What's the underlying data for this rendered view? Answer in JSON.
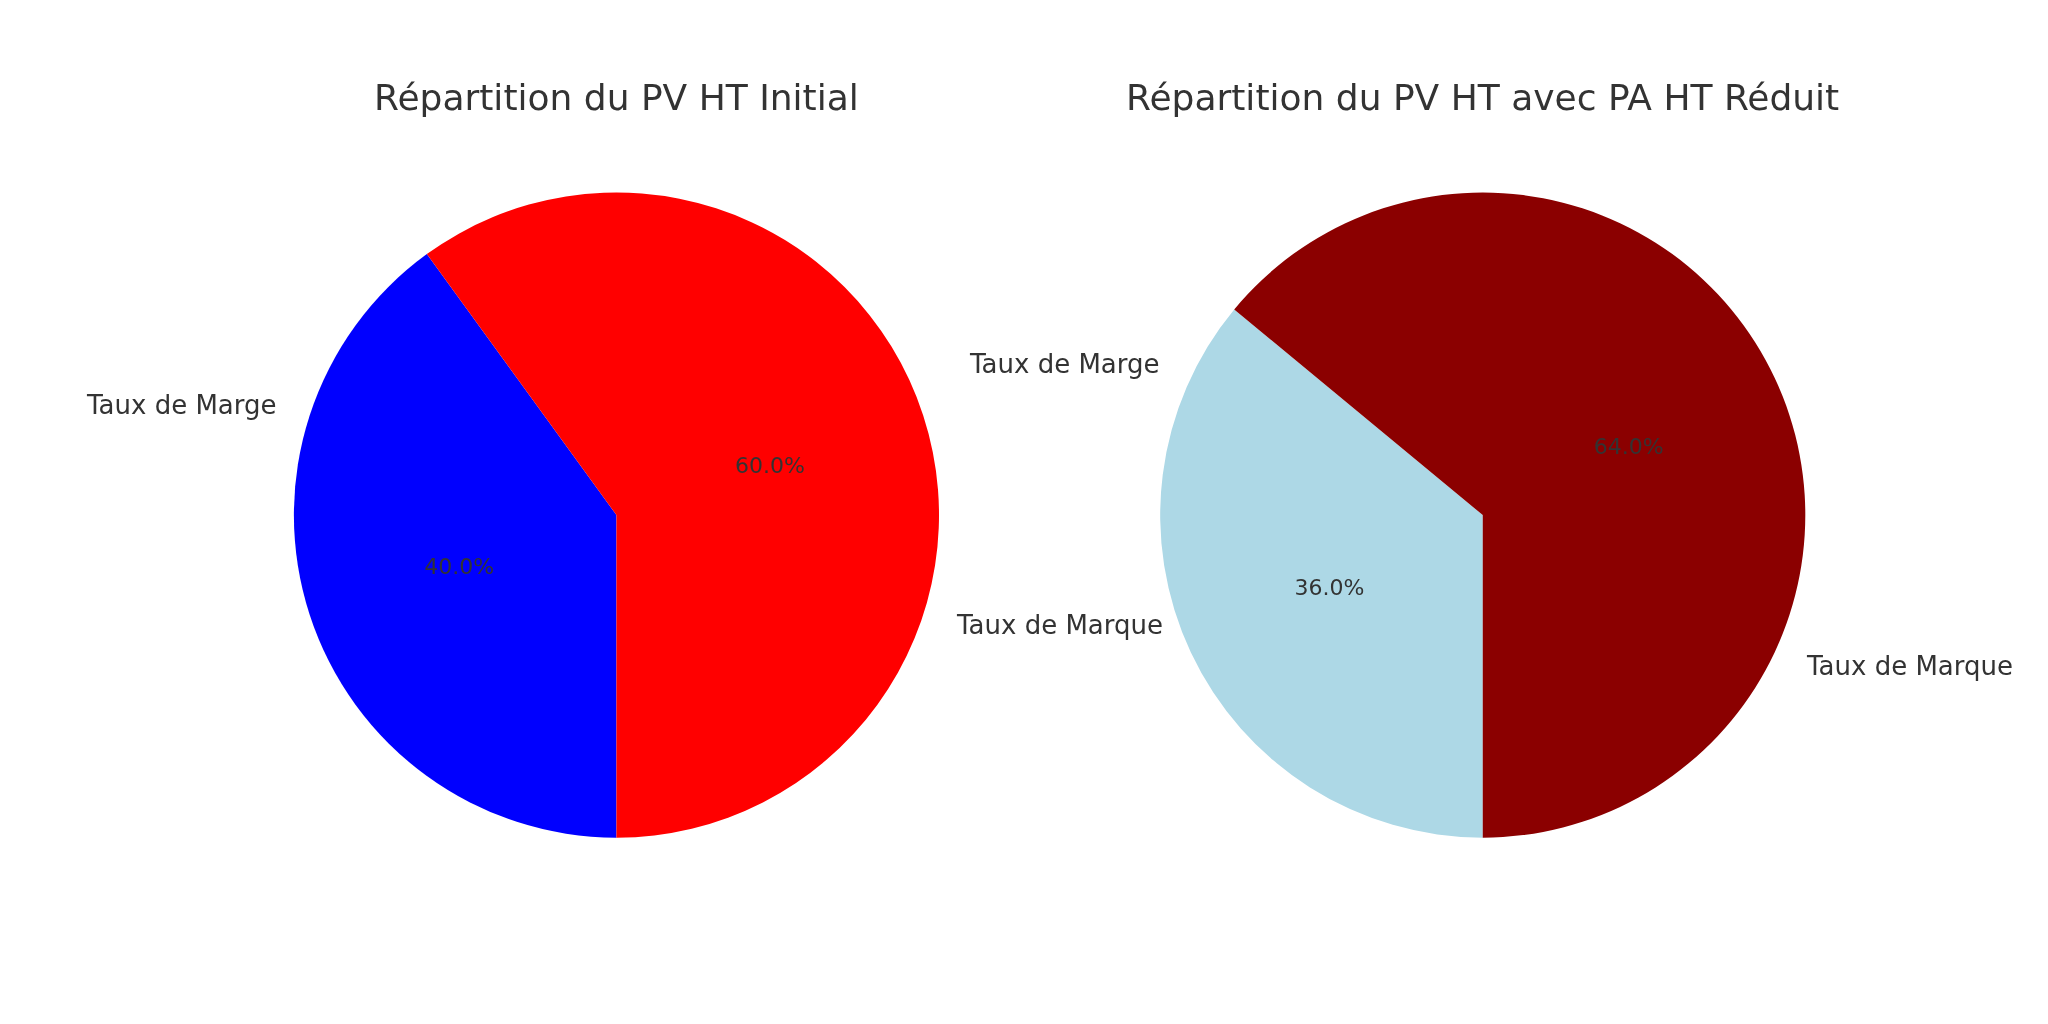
{
  "chart_data": [
    {
      "type": "pie",
      "title": "Répartition du PV HT Initial",
      "categories": [
        "Taux de Marge",
        "Taux de Marque"
      ],
      "values": [
        40,
        60
      ],
      "colors": [
        "#0000ff",
        "#ff0000"
      ],
      "value_labels": [
        "40.0%",
        "60.0%"
      ]
    },
    {
      "type": "pie",
      "title": "Répartition du PV HT avec PA HT Réduit",
      "categories": [
        "Taux de Marge",
        "Taux de Marque"
      ],
      "values": [
        36,
        64
      ],
      "colors": [
        "#add8e6",
        "#8b0000"
      ],
      "value_labels": [
        "36.0%",
        "64.0%"
      ]
    }
  ]
}
